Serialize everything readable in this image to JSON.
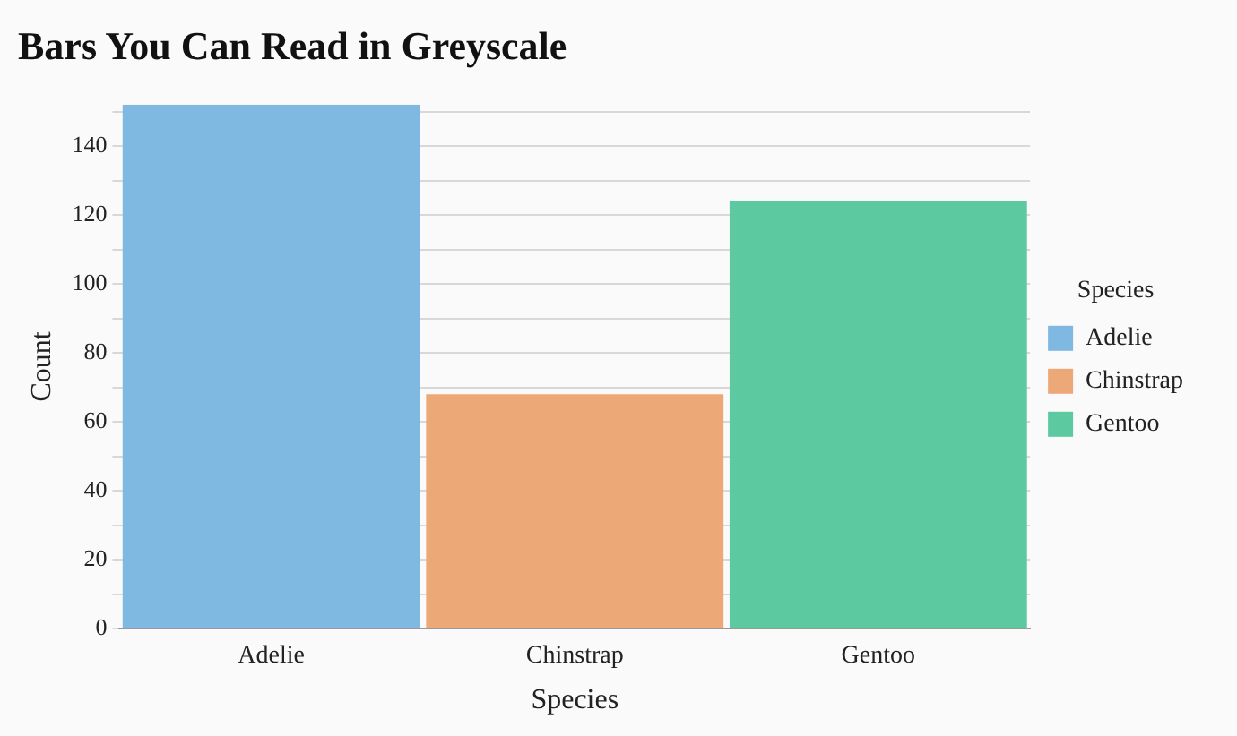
{
  "chart_data": {
    "type": "bar",
    "title": "Bars You Can Read in Greyscale",
    "xlabel": "Species",
    "ylabel": "Count",
    "legend_title": "Species",
    "categories": [
      "Adelie",
      "Chinstrap",
      "Gentoo"
    ],
    "series": [
      {
        "name": "Adelie",
        "color": "#7fb8e0",
        "values": [
          152,
          null,
          null
        ]
      },
      {
        "name": "Chinstrap",
        "color": "#eda878",
        "values": [
          null,
          68,
          null
        ]
      },
      {
        "name": "Gentoo",
        "color": "#5cc9a0",
        "values": [
          null,
          null,
          124
        ]
      }
    ],
    "ylim": [
      0,
      152
    ],
    "yticks": [
      0,
      {
        "value": 10,
        "label": null
      },
      20,
      {
        "value": 30,
        "label": null
      },
      40,
      {
        "value": 50,
        "label": null
      },
      60,
      {
        "value": 70,
        "label": null
      },
      80,
      {
        "value": 90,
        "label": null
      },
      100,
      {
        "value": 110,
        "label": null
      },
      120,
      {
        "value": 130,
        "label": null
      },
      140,
      {
        "value": 150,
        "label": null
      }
    ],
    "grid": "y",
    "legend": "right"
  }
}
